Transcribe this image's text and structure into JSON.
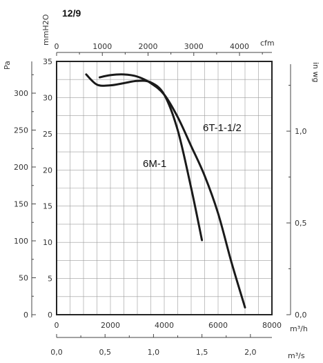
{
  "model_label": "12/9",
  "chart_data": {
    "type": "line",
    "title": "12/9",
    "x_primary": {
      "unit": "m³/h",
      "range": [
        0,
        8000
      ],
      "ticks": [
        "0",
        "2000",
        "4000",
        "6000",
        "8000"
      ]
    },
    "x_secondary": {
      "unit": "m³/s",
      "range": [
        0,
        2.222
      ],
      "ticks": [
        "0,0",
        "0,5",
        "1,0",
        "1,5",
        "2,0"
      ]
    },
    "x_top": {
      "unit": "cfm",
      "range": [
        0,
        4709
      ],
      "ticks": [
        "0",
        "1000",
        "2000",
        "3000",
        "4000"
      ]
    },
    "y_primary": {
      "unit": "Pa",
      "range": [
        0,
        343
      ],
      "ticks": [
        "0",
        "50",
        "100",
        "150",
        "200",
        "250",
        "300"
      ]
    },
    "y_secondary": {
      "unit": "mmH2O",
      "range": [
        0,
        35
      ],
      "ticks": [
        "0",
        "5",
        "10",
        "15",
        "20",
        "25",
        "30",
        "35"
      ]
    },
    "y_right": {
      "unit": "in wg",
      "range": [
        0,
        1.38
      ],
      "ticks": [
        "0,0",
        "0,5",
        "1,0"
      ]
    },
    "grid": true,
    "series": [
      {
        "name": "6T-1-1/2",
        "x": [
          1600,
          2000,
          2500,
          3000,
          3500,
          4000,
          4500,
          5000,
          5500,
          6000,
          6500,
          7000
        ],
        "y": [
          32.8,
          33.1,
          33.2,
          32.9,
          32.0,
          30.4,
          27.3,
          23.3,
          19.2,
          14.0,
          7.2,
          1.0
        ]
      },
      {
        "name": "6M-1",
        "x": [
          1100,
          1500,
          2000,
          2500,
          3000,
          3500,
          4000,
          4500,
          5000,
          5400
        ],
        "y": [
          33.2,
          31.8,
          31.7,
          32.0,
          32.3,
          32.1,
          30.4,
          25.5,
          17.5,
          10.3
        ]
      }
    ]
  },
  "labels": {
    "curve_6t": "6T-1-1/2",
    "curve_6m": "6M-1"
  }
}
